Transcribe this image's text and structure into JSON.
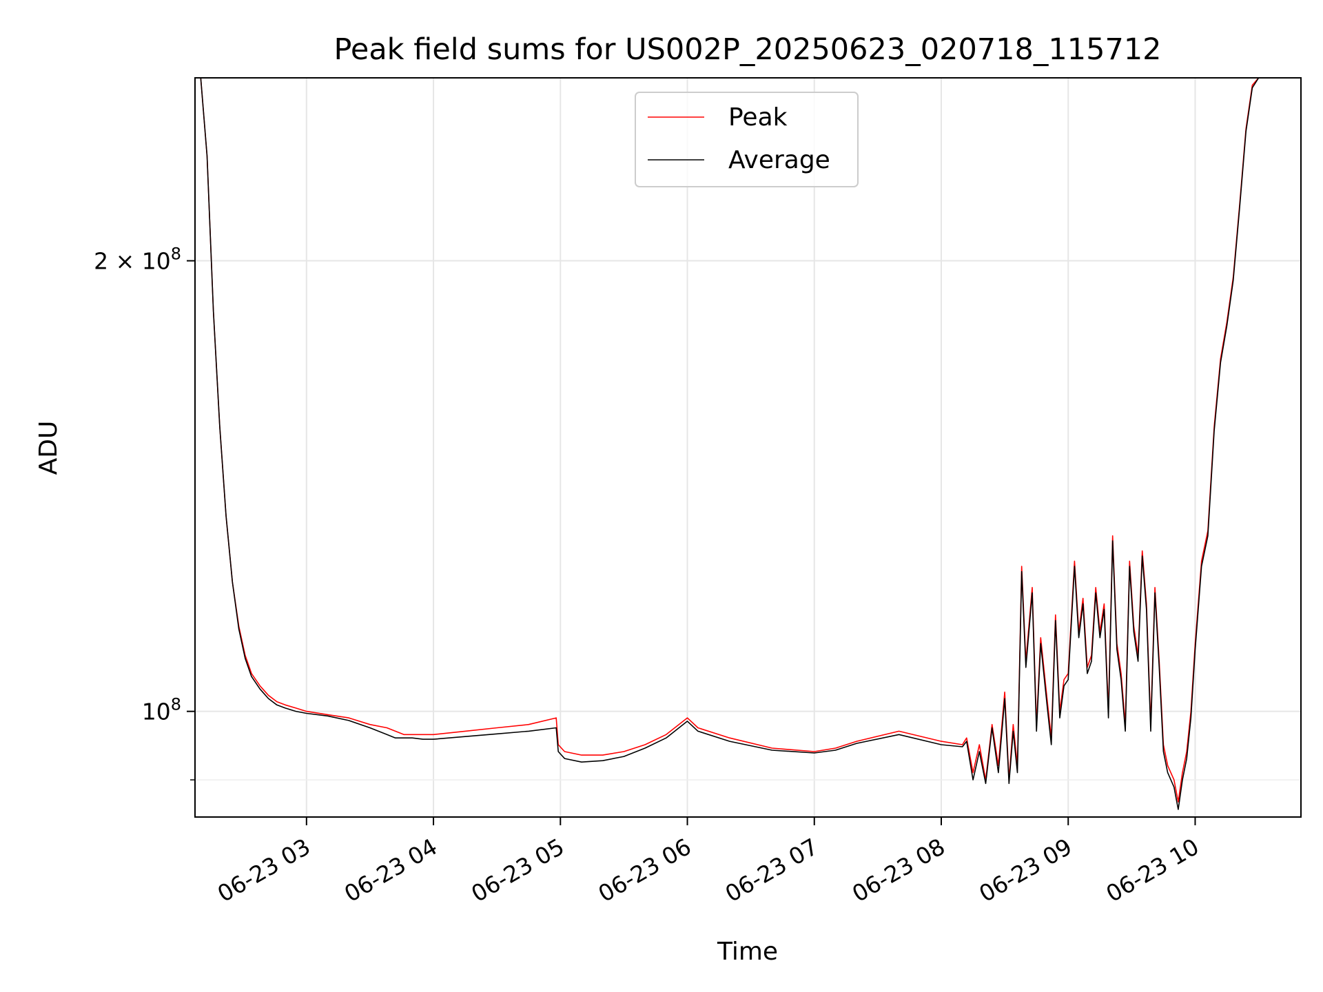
{
  "chart_data": {
    "type": "line",
    "title": "Peak field sums for US002P_20250623_020718_115712",
    "xlabel": "Time",
    "ylabel": "ADU",
    "y_scale": "log",
    "ylim": [
      85000000,
      265000000
    ],
    "xlim": [
      "2025-06-23 02:07:18",
      "2025-06-23 10:50:00"
    ],
    "x_ticks": [
      "06-23 03",
      "06-23 04",
      "06-23 05",
      "06-23 06",
      "06-23 07",
      "06-23 08",
      "06-23 09",
      "06-23 10"
    ],
    "x_tick_times": [
      "2025-06-23 03:00",
      "2025-06-23 04:00",
      "2025-06-23 05:00",
      "2025-06-23 06:00",
      "2025-06-23 07:00",
      "2025-06-23 08:00",
      "2025-06-23 09:00",
      "2025-06-23 10:00"
    ],
    "y_ticks": [
      {
        "value": 200000000,
        "base": "2 × 10",
        "exp": "8"
      },
      {
        "value": 100000000,
        "base": "10",
        "exp": "8"
      }
    ],
    "grid": true,
    "legend_position": "upper center",
    "series": [
      {
        "name": "Peak",
        "color": "#ff0000",
        "x": [
          "2025-06-23 02:07",
          "2025-06-23 02:10",
          "2025-06-23 02:13",
          "2025-06-23 02:16",
          "2025-06-23 02:19",
          "2025-06-23 02:22",
          "2025-06-23 02:25",
          "2025-06-23 02:28",
          "2025-06-23 02:31",
          "2025-06-23 02:34",
          "2025-06-23 02:38",
          "2025-06-23 02:42",
          "2025-06-23 02:46",
          "2025-06-23 02:50",
          "2025-06-23 02:55",
          "2025-06-23 03:00",
          "2025-06-23 03:10",
          "2025-06-23 03:20",
          "2025-06-23 03:30",
          "2025-06-23 03:38",
          "2025-06-23 03:42",
          "2025-06-23 03:46",
          "2025-06-23 03:50",
          "2025-06-23 03:55",
          "2025-06-23 04:00",
          "2025-06-23 04:15",
          "2025-06-23 04:30",
          "2025-06-23 04:45",
          "2025-06-23 04:58",
          "2025-06-23 04:59",
          "2025-06-23 05:02",
          "2025-06-23 05:10",
          "2025-06-23 05:20",
          "2025-06-23 05:30",
          "2025-06-23 05:40",
          "2025-06-23 05:50",
          "2025-06-23 06:00",
          "2025-06-23 06:05",
          "2025-06-23 06:20",
          "2025-06-23 06:40",
          "2025-06-23 07:00",
          "2025-06-23 07:10",
          "2025-06-23 07:20",
          "2025-06-23 07:40",
          "2025-06-23 08:00",
          "2025-06-23 08:10",
          "2025-06-23 08:12",
          "2025-06-23 08:15",
          "2025-06-23 08:18",
          "2025-06-23 08:21",
          "2025-06-23 08:24",
          "2025-06-23 08:27",
          "2025-06-23 08:30",
          "2025-06-23 08:32",
          "2025-06-23 08:34",
          "2025-06-23 08:36",
          "2025-06-23 08:38",
          "2025-06-23 08:40",
          "2025-06-23 08:43",
          "2025-06-23 08:45",
          "2025-06-23 08:47",
          "2025-06-23 08:50",
          "2025-06-23 08:52",
          "2025-06-23 08:54",
          "2025-06-23 08:56",
          "2025-06-23 08:58",
          "2025-06-23 09:00",
          "2025-06-23 09:03",
          "2025-06-23 09:05",
          "2025-06-23 09:07",
          "2025-06-23 09:09",
          "2025-06-23 09:11",
          "2025-06-23 09:13",
          "2025-06-23 09:15",
          "2025-06-23 09:17",
          "2025-06-23 09:19",
          "2025-06-23 09:21",
          "2025-06-23 09:23",
          "2025-06-23 09:25",
          "2025-06-23 09:27",
          "2025-06-23 09:29",
          "2025-06-23 09:31",
          "2025-06-23 09:33",
          "2025-06-23 09:35",
          "2025-06-23 09:37",
          "2025-06-23 09:39",
          "2025-06-23 09:41",
          "2025-06-23 09:43",
          "2025-06-23 09:45",
          "2025-06-23 09:47",
          "2025-06-23 09:50",
          "2025-06-23 09:52",
          "2025-06-23 09:54",
          "2025-06-23 09:56",
          "2025-06-23 09:58",
          "2025-06-23 10:00",
          "2025-06-23 10:03",
          "2025-06-23 10:06",
          "2025-06-23 10:09",
          "2025-06-23 10:12",
          "2025-06-23 10:15",
          "2025-06-23 10:18",
          "2025-06-23 10:21",
          "2025-06-23 10:24",
          "2025-06-23 10:27",
          "2025-06-23 10:30",
          "2025-06-23 10:33",
          "2025-06-23 10:36",
          "2025-06-23 10:39",
          "2025-06-23 10:42",
          "2025-06-23 10:45"
        ],
        "values": [
          265000000,
          265000000,
          235000000,
          185000000,
          155000000,
          135000000,
          122000000,
          114000000,
          109000000,
          106000000,
          104000000,
          102500000,
          101500000,
          101000000,
          100500000,
          100000000,
          99500000,
          99000000,
          98000000,
          97500000,
          97000000,
          96500000,
          96500000,
          96500000,
          96500000,
          97000000,
          97500000,
          98000000,
          99000000,
          95000000,
          94000000,
          93500000,
          93500000,
          94000000,
          95000000,
          96500000,
          99000000,
          97500000,
          96000000,
          94500000,
          94000000,
          94500000,
          95500000,
          97000000,
          95500000,
          95000000,
          96000000,
          91000000,
          95000000,
          90000000,
          98000000,
          92000000,
          103000000,
          90000000,
          98000000,
          92000000,
          125000000,
          108000000,
          121000000,
          98000000,
          112000000,
          102000000,
          96000000,
          116000000,
          100000000,
          105000000,
          106000000,
          126000000,
          113000000,
          119000000,
          107000000,
          109000000,
          121000000,
          113000000,
          118000000,
          100000000,
          131000000,
          111000000,
          106000000,
          98000000,
          126000000,
          114000000,
          109000000,
          128000000,
          118000000,
          98000000,
          121000000,
          108000000,
          95000000,
          92000000,
          90000000,
          87000000,
          91000000,
          94000000,
          100000000,
          111000000,
          126000000,
          132000000,
          155000000,
          172000000,
          182000000,
          195000000,
          218000000,
          245000000,
          262000000,
          265000000,
          265000000,
          265000000,
          265000000,
          265000000,
          265000000
        ]
      },
      {
        "name": "Average",
        "color": "#000000",
        "x": [
          "2025-06-23 02:07",
          "2025-06-23 02:10",
          "2025-06-23 02:13",
          "2025-06-23 02:16",
          "2025-06-23 02:19",
          "2025-06-23 02:22",
          "2025-06-23 02:25",
          "2025-06-23 02:28",
          "2025-06-23 02:31",
          "2025-06-23 02:34",
          "2025-06-23 02:38",
          "2025-06-23 02:42",
          "2025-06-23 02:46",
          "2025-06-23 02:50",
          "2025-06-23 02:55",
          "2025-06-23 03:00",
          "2025-06-23 03:10",
          "2025-06-23 03:20",
          "2025-06-23 03:30",
          "2025-06-23 03:38",
          "2025-06-23 03:42",
          "2025-06-23 03:46",
          "2025-06-23 03:50",
          "2025-06-23 03:55",
          "2025-06-23 04:00",
          "2025-06-23 04:15",
          "2025-06-23 04:30",
          "2025-06-23 04:45",
          "2025-06-23 04:58",
          "2025-06-23 04:59",
          "2025-06-23 05:02",
          "2025-06-23 05:10",
          "2025-06-23 05:20",
          "2025-06-23 05:30",
          "2025-06-23 05:40",
          "2025-06-23 05:50",
          "2025-06-23 06:00",
          "2025-06-23 06:05",
          "2025-06-23 06:20",
          "2025-06-23 06:40",
          "2025-06-23 07:00",
          "2025-06-23 07:10",
          "2025-06-23 07:20",
          "2025-06-23 07:40",
          "2025-06-23 08:00",
          "2025-06-23 08:10",
          "2025-06-23 08:12",
          "2025-06-23 08:15",
          "2025-06-23 08:18",
          "2025-06-23 08:21",
          "2025-06-23 08:24",
          "2025-06-23 08:27",
          "2025-06-23 08:30",
          "2025-06-23 08:32",
          "2025-06-23 08:34",
          "2025-06-23 08:36",
          "2025-06-23 08:38",
          "2025-06-23 08:40",
          "2025-06-23 08:43",
          "2025-06-23 08:45",
          "2025-06-23 08:47",
          "2025-06-23 08:50",
          "2025-06-23 08:52",
          "2025-06-23 08:54",
          "2025-06-23 08:56",
          "2025-06-23 08:58",
          "2025-06-23 09:00",
          "2025-06-23 09:03",
          "2025-06-23 09:05",
          "2025-06-23 09:07",
          "2025-06-23 09:09",
          "2025-06-23 09:11",
          "2025-06-23 09:13",
          "2025-06-23 09:15",
          "2025-06-23 09:17",
          "2025-06-23 09:19",
          "2025-06-23 09:21",
          "2025-06-23 09:23",
          "2025-06-23 09:25",
          "2025-06-23 09:27",
          "2025-06-23 09:29",
          "2025-06-23 09:31",
          "2025-06-23 09:33",
          "2025-06-23 09:35",
          "2025-06-23 09:37",
          "2025-06-23 09:39",
          "2025-06-23 09:41",
          "2025-06-23 09:43",
          "2025-06-23 09:45",
          "2025-06-23 09:47",
          "2025-06-23 09:50",
          "2025-06-23 09:52",
          "2025-06-23 09:54",
          "2025-06-23 09:56",
          "2025-06-23 09:58",
          "2025-06-23 10:00",
          "2025-06-23 10:03",
          "2025-06-23 10:06",
          "2025-06-23 10:09",
          "2025-06-23 10:12",
          "2025-06-23 10:15",
          "2025-06-23 10:18",
          "2025-06-23 10:21",
          "2025-06-23 10:24",
          "2025-06-23 10:27",
          "2025-06-23 10:30",
          "2025-06-23 10:33",
          "2025-06-23 10:36",
          "2025-06-23 10:39",
          "2025-06-23 10:42",
          "2025-06-23 10:45"
        ],
        "values": [
          265000000,
          265000000,
          235000000,
          185000000,
          155000000,
          135000000,
          122000000,
          113500000,
          108500000,
          105500000,
          103500000,
          102000000,
          101000000,
          100500000,
          100000000,
          99700000,
          99300000,
          98600000,
          97500000,
          96500000,
          96000000,
          96000000,
          96000000,
          95800000,
          95800000,
          96200000,
          96600000,
          97000000,
          97500000,
          94000000,
          93000000,
          92500000,
          92700000,
          93300000,
          94500000,
          96000000,
          98500000,
          97000000,
          95500000,
          94200000,
          93800000,
          94200000,
          95200000,
          96500000,
          95000000,
          94700000,
          95500000,
          90000000,
          94000000,
          89500000,
          97500000,
          91000000,
          102000000,
          89500000,
          97000000,
          91000000,
          124000000,
          107000000,
          120000000,
          97000000,
          111000000,
          101000000,
          95000000,
          115000000,
          99000000,
          104000000,
          105000000,
          125000000,
          112000000,
          118000000,
          106000000,
          108000000,
          120000000,
          112000000,
          117000000,
          99000000,
          130000000,
          110000000,
          105000000,
          97000000,
          125000000,
          113000000,
          108000000,
          127000000,
          117000000,
          97000000,
          120000000,
          107000000,
          94000000,
          91000000,
          89000000,
          86000000,
          90000000,
          93000000,
          99000000,
          110000000,
          125000000,
          131000000,
          154000000,
          171000000,
          181000000,
          194000000,
          217000000,
          244000000,
          261000000,
          265000000,
          265000000,
          265000000,
          265000000,
          265000000,
          265000000
        ]
      }
    ]
  }
}
